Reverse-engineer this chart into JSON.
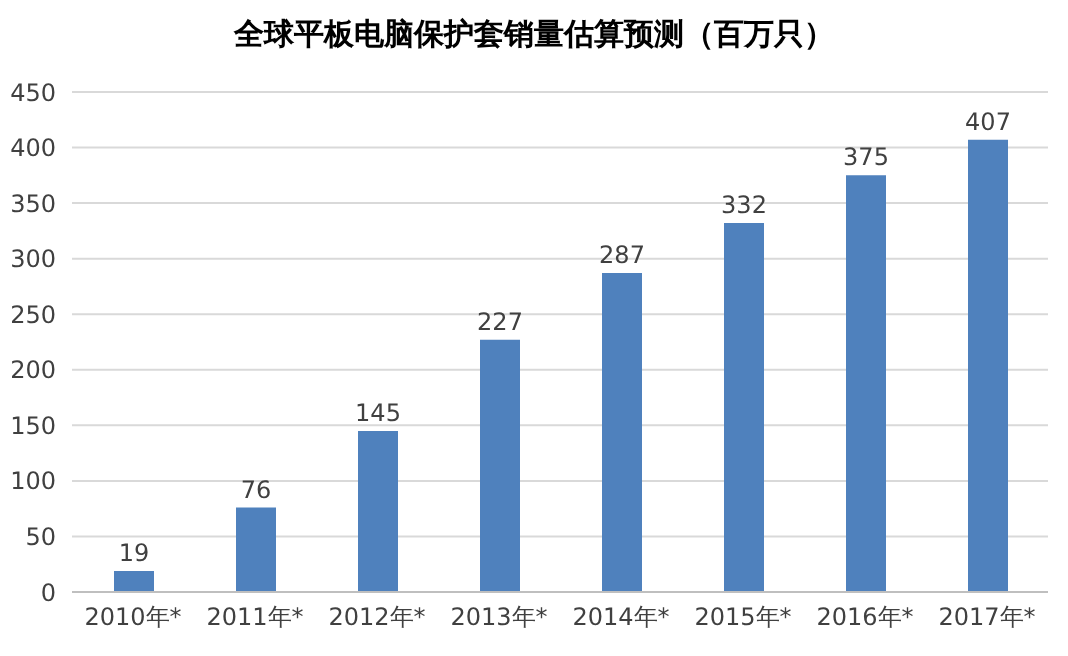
{
  "chart_data": {
    "type": "bar",
    "title": "全球平板电脑保护套销量估算预测（百万只）",
    "categories": [
      "2010年*",
      "2011年*",
      "2012年*",
      "2013年*",
      "2014年*",
      "2015年*",
      "2016年*",
      "2017年*"
    ],
    "values": [
      19,
      76,
      145,
      227,
      287,
      332,
      375,
      407
    ],
    "color": "#4f81bd",
    "ylim": [
      0,
      450
    ],
    "yticks": [
      0,
      50,
      100,
      150,
      200,
      250,
      300,
      350,
      400,
      450
    ],
    "grid": "y",
    "data_labels": true
  }
}
